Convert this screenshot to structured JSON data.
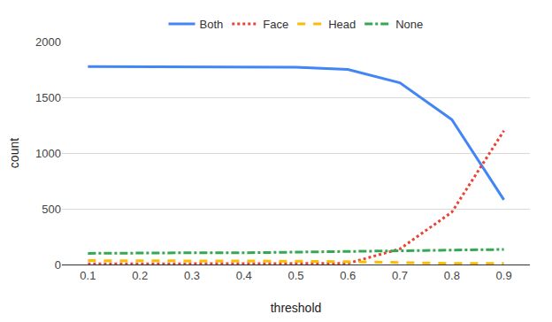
{
  "chart_data": {
    "type": "line",
    "x_label": "threshold",
    "y_label": "count",
    "categories": [
      "0.1",
      "0.2",
      "0.3",
      "0.4",
      "0.5",
      "0.6",
      "0.7",
      "0.8",
      "0.9"
    ],
    "series": [
      {
        "name": "Both",
        "color": "#4285f4",
        "line_style": "solid",
        "values": [
          1775,
          1775,
          1775,
          1775,
          1770,
          1750,
          1630,
          1300,
          580
        ]
      },
      {
        "name": "Face",
        "color": "#ea4335",
        "line_style": "dot",
        "values": [
          5,
          5,
          5,
          5,
          5,
          10,
          140,
          470,
          1200
        ]
      },
      {
        "name": "Head",
        "color": "#fbbc04",
        "line_style": "dash",
        "values": [
          35,
          35,
          35,
          35,
          30,
          25,
          15,
          10,
          10
        ]
      },
      {
        "name": "None",
        "color": "#34a853",
        "line_style": "dashdot",
        "values": [
          100,
          105,
          105,
          105,
          110,
          115,
          125,
          130,
          135
        ]
      }
    ],
    "ylim": [
      0,
      2000
    ],
    "yticks": [
      0,
      500,
      1000,
      1500,
      2000
    ],
    "grid": true,
    "legend": "top"
  }
}
